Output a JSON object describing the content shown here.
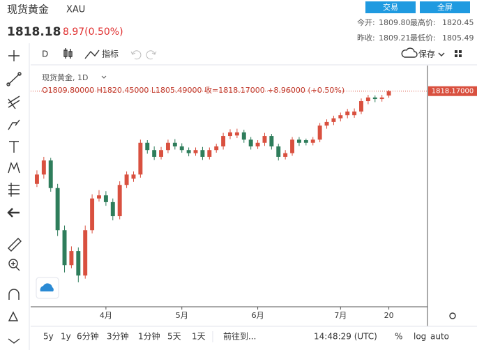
{
  "header": {
    "name": "现货黄金",
    "symbol": "XAU",
    "price": "1818.18",
    "change": "8.97(0.50%)",
    "buttons": [
      "交易",
      "全屏"
    ],
    "stats": [
      {
        "label": "今开:",
        "value": "1809.80"
      },
      {
        "label": "最高价:",
        "value": "1820.45"
      },
      {
        "label": "昨收:",
        "value": "1809.21"
      },
      {
        "label": "最低价:",
        "value": "1805.49"
      }
    ]
  },
  "toolbar": {
    "interval": "D",
    "indicators": "指标",
    "save": "保存"
  },
  "bottom_bar": {
    "ranges": [
      "5y",
      "1y",
      "6分钟",
      "3分钟",
      "1分钟",
      "5天",
      "1天"
    ],
    "goto": "前往到...",
    "time": "14:48:29 (UTC)",
    "options": [
      "%",
      "log",
      "auto"
    ]
  },
  "chart_data": {
    "type": "candlestick",
    "title": "现货黄金, 1D",
    "legend": "O1809.80000 H1820.45000 L1805.49000 收=1818.17000 +8.96000 (+0.50%)",
    "last_price": {
      "value": 1818.17,
      "label": "1818.17000"
    },
    "up_color": "#d9503f",
    "down_color": "#2e7d5b",
    "open": [
      1640,
      1658,
      1685,
      1632,
      1551,
      1484,
      1511,
      1464,
      1551,
      1612,
      1618,
      1605,
      1578,
      1638,
      1650,
      1658,
      1719,
      1705,
      1692,
      1705,
      1719,
      1712,
      1705,
      1699,
      1705,
      1692,
      1705,
      1712,
      1732,
      1733,
      1739,
      1725,
      1712,
      1719,
      1732,
      1712,
      1692,
      1699,
      1725,
      1724,
      1719,
      1725,
      1752,
      1759,
      1766,
      1772,
      1772,
      1779,
      1799,
      1806,
      1803,
      1809.8
    ],
    "high": [
      1666,
      1692,
      1690,
      1640,
      1560,
      1520,
      1518,
      1560,
      1620,
      1628,
      1626,
      1612,
      1645,
      1664,
      1664,
      1725,
      1724,
      1712,
      1711,
      1725,
      1726,
      1718,
      1710,
      1710,
      1711,
      1710,
      1717,
      1738,
      1745,
      1746,
      1744,
      1730,
      1724,
      1738,
      1736,
      1717,
      1705,
      1730,
      1730,
      1727,
      1730,
      1757,
      1764,
      1771,
      1777,
      1784,
      1785,
      1804,
      1811,
      1810,
      1811,
      1820.45
    ],
    "low": [
      1634,
      1650,
      1625,
      1540,
      1470,
      1478,
      1451,
      1458,
      1545,
      1606,
      1598,
      1570,
      1572,
      1632,
      1644,
      1652,
      1698,
      1686,
      1687,
      1699,
      1706,
      1700,
      1693,
      1694,
      1686,
      1687,
      1700,
      1706,
      1726,
      1728,
      1719,
      1706,
      1707,
      1713,
      1706,
      1685,
      1687,
      1694,
      1713,
      1714,
      1714,
      1720,
      1746,
      1753,
      1760,
      1766,
      1767,
      1774,
      1793,
      1797,
      1798,
      1805.49
    ],
    "close": [
      1658,
      1685,
      1632,
      1551,
      1484,
      1511,
      1464,
      1551,
      1612,
      1618,
      1605,
      1578,
      1638,
      1658,
      1658,
      1719,
      1705,
      1692,
      1705,
      1719,
      1712,
      1705,
      1699,
      1705,
      1692,
      1705,
      1712,
      1732,
      1739,
      1739,
      1725,
      1712,
      1719,
      1732,
      1712,
      1692,
      1699,
      1725,
      1719,
      1719,
      1725,
      1752,
      1759,
      1766,
      1772,
      1779,
      1779,
      1799,
      1806,
      1803,
      1806,
      1818.17
    ],
    "xlim": [
      -0.5,
      56.5
    ],
    "ylim": [
      1404,
      1866
    ],
    "xticks": [
      {
        "value": 10,
        "label": "4月"
      },
      {
        "value": 21,
        "label": "5月"
      },
      {
        "value": 32,
        "label": "6月"
      },
      {
        "value": 44,
        "label": "7月"
      },
      {
        "value": 51,
        "label": "20"
      }
    ]
  }
}
